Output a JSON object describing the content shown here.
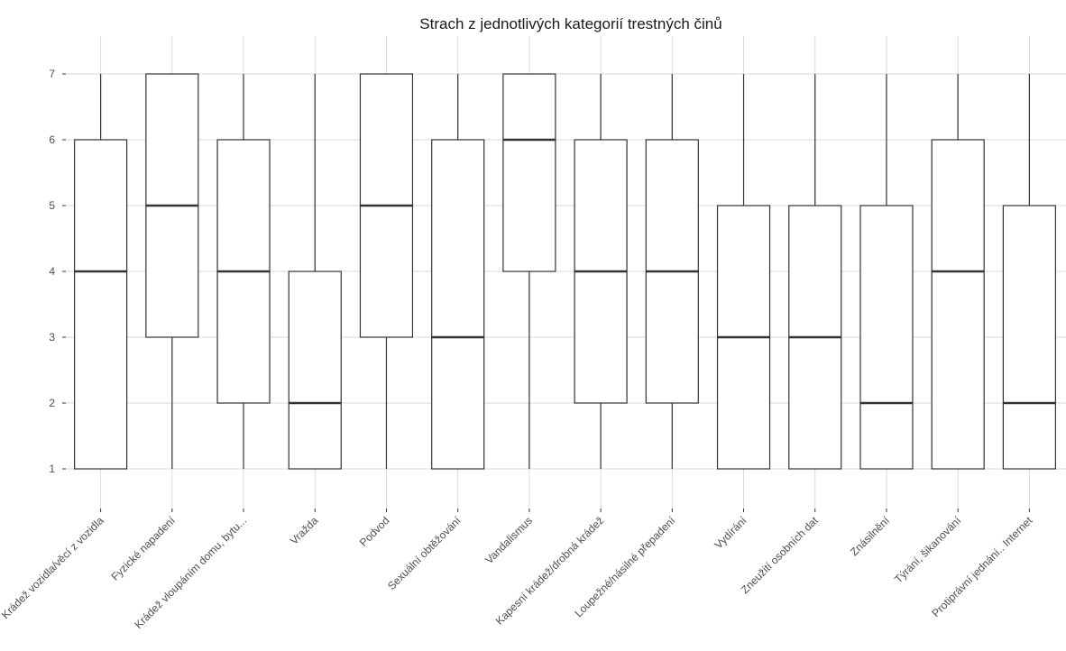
{
  "chart_data": {
    "type": "boxplot",
    "title": "Strach z jednotlivých kategorií trestných činů",
    "xlabel": "",
    "ylabel": "",
    "ylim": [
      0.6,
      7.6
    ],
    "yticks": [
      1,
      2,
      3,
      4,
      5,
      6,
      7
    ],
    "grid": true,
    "colors": {
      "box_fill": "#ffffff",
      "box_stroke": "#333333",
      "grid": "#d9d9d9",
      "tick_text": "#4d4d4d"
    },
    "categories": [
      "Krádež vozidla/věcí z vozidla",
      "Fyzické napadení",
      "Krádež vloupáním domu, bytu...",
      "Vražda",
      "Podvod",
      "Sexuální obtěžování",
      "Vandalismus",
      "Kapesní krádež/drobná krádež",
      "Loupežné/násilné přepadení",
      "Vydírání",
      "Zneužití osobních dat",
      "Znásilnění",
      "Týrání, šikanování",
      "Protiprávní jednání.. Internet"
    ],
    "boxes": [
      {
        "min": 1,
        "q1": 1,
        "median": 4,
        "q3": 6,
        "max": 7
      },
      {
        "min": 1,
        "q1": 3,
        "median": 5,
        "q3": 7,
        "max": 7
      },
      {
        "min": 1,
        "q1": 2,
        "median": 4,
        "q3": 6,
        "max": 7
      },
      {
        "min": 1,
        "q1": 1,
        "median": 2,
        "q3": 4,
        "max": 7
      },
      {
        "min": 1,
        "q1": 3,
        "median": 5,
        "q3": 7,
        "max": 7
      },
      {
        "min": 1,
        "q1": 1,
        "median": 3,
        "q3": 6,
        "max": 7
      },
      {
        "min": 1,
        "q1": 4,
        "median": 6,
        "q3": 7,
        "max": 7
      },
      {
        "min": 1,
        "q1": 2,
        "median": 4,
        "q3": 6,
        "max": 7
      },
      {
        "min": 1,
        "q1": 2,
        "median": 4,
        "q3": 6,
        "max": 7
      },
      {
        "min": 1,
        "q1": 1,
        "median": 3,
        "q3": 5,
        "max": 7
      },
      {
        "min": 1,
        "q1": 1,
        "median": 3,
        "q3": 5,
        "max": 7
      },
      {
        "min": 1,
        "q1": 1,
        "median": 2,
        "q3": 5,
        "max": 7
      },
      {
        "min": 1,
        "q1": 1,
        "median": 4,
        "q3": 6,
        "max": 7
      },
      {
        "min": 1,
        "q1": 1,
        "median": 2,
        "q3": 5,
        "max": 7
      }
    ]
  }
}
